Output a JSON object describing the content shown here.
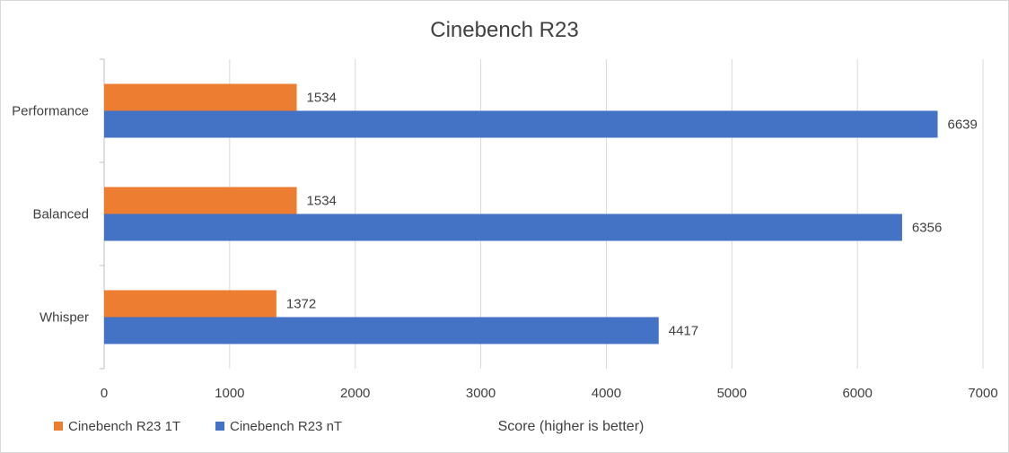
{
  "chart_data": {
    "type": "bar",
    "orientation": "horizontal",
    "title": "Cinebench R23",
    "xlabel": "Score (higher is better)",
    "ylabel": "",
    "categories": [
      "Performance",
      "Balanced",
      "Whisper"
    ],
    "series": [
      {
        "name": "Cinebench R23 1T",
        "color": "#ED7D31",
        "values": [
          1534,
          1534,
          1372
        ]
      },
      {
        "name": "Cinebench R23 nT",
        "color": "#4472C4",
        "values": [
          6639,
          6356,
          4417
        ]
      }
    ],
    "xlim": [
      0,
      7000
    ],
    "xticks": [
      0,
      1000,
      2000,
      3000,
      4000,
      5000,
      6000,
      7000
    ],
    "grid": true,
    "legend": "bottom-left",
    "data_labels": true
  }
}
